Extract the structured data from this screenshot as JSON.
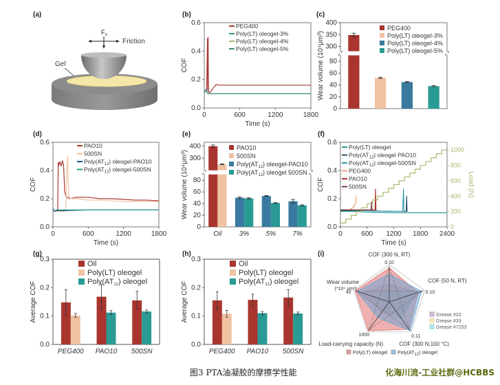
{
  "figure": {
    "caption": "图3 PTA油凝胶的摩擦学性能",
    "watermark": "化海川流-工业社群@HCBBS"
  },
  "colors": {
    "peg400": "#a8362f",
    "oil": "#a8362f",
    "pao10": "#a8362f",
    "light": "#f0c2a2",
    "blue": "#3a7aa0",
    "teal": "#2a9a94",
    "green": "#3aa08c",
    "olive": "#b0b080",
    "load": "#a8b870",
    "axis": "#444444",
    "darkblue": "#2b4f6e",
    "red_radar": "#e07070",
    "blue_radar": "#6fa6d4"
  },
  "chart_data": [
    {
      "id": "a",
      "type": "diagram",
      "panel_label": "(a)",
      "labels": {
        "force": "Fn",
        "friction": "Friction",
        "gel": "Gel"
      }
    },
    {
      "id": "b",
      "type": "line",
      "panel_label": "(b)",
      "xlabel": "Time (s)",
      "ylabel": "COF",
      "xlim": [
        0,
        1800
      ],
      "ylim": [
        0,
        0.6
      ],
      "xticks": [
        0,
        600,
        1200,
        1800
      ],
      "yticks": [
        0.0,
        0.2,
        0.4,
        0.6
      ],
      "legend": "top-right",
      "series": [
        {
          "name": "PEG400",
          "color": "#a8362f",
          "x": [
            0,
            20,
            40,
            55,
            60,
            65,
            70,
            80,
            100,
            150,
            200,
            250,
            300,
            400,
            600,
            800,
            1000,
            1200,
            1400,
            1600,
            1800
          ],
          "y": [
            0.12,
            0.12,
            0.13,
            0.49,
            0.12,
            0.5,
            0.12,
            0.11,
            0.11,
            0.14,
            0.165,
            0.16,
            0.16,
            0.16,
            0.16,
            0.16,
            0.16,
            0.16,
            0.16,
            0.16,
            0.16
          ]
        },
        {
          "name": "Poly(LT) oleogel-3%",
          "color": "#2a9a94",
          "x": [
            0,
            30,
            60,
            100,
            200,
            600,
            1200,
            1800
          ],
          "y": [
            0.11,
            0.12,
            0.105,
            0.1,
            0.1,
            0.1,
            0.1,
            0.1
          ]
        },
        {
          "name": "Poly(LT) oleogel-4%",
          "color": "#b0b080",
          "x": [
            0,
            30,
            60,
            100,
            200,
            600,
            1200,
            1800
          ],
          "y": [
            0.11,
            0.115,
            0.105,
            0.102,
            0.101,
            0.1,
            0.1,
            0.1
          ]
        },
        {
          "name": "Poly(LT) oleogel-5%",
          "color": "#3a8f8a",
          "x": [
            0,
            30,
            60,
            100,
            200,
            600,
            1200,
            1800
          ],
          "y": [
            0.11,
            0.13,
            0.1,
            0.1,
            0.1,
            0.1,
            0.1,
            0.1
          ]
        }
      ]
    },
    {
      "id": "c",
      "type": "bar",
      "panel_label": "(c)",
      "ylabel": "Wear volume (10⁴μm³)",
      "yticks_low": [
        0,
        20,
        40,
        60,
        80
      ],
      "yticks_high": [
        300,
        350,
        400
      ],
      "ylim_low": [
        0,
        90
      ],
      "ylim_high": [
        280,
        400
      ],
      "legend": "top-right",
      "categories": [
        "PEG400",
        "Poly(LT) oleogel-3%",
        "Poly(LT) oleogel-4%",
        "Poly(LT) oleogel-5%"
      ],
      "values": [
        348,
        52,
        45,
        38
      ],
      "errors": [
        8,
        1,
        0.8,
        0.8
      ],
      "colors": [
        "#a8362f",
        "#f0c2a2",
        "#3a7aa0",
        "#2a9a94"
      ]
    },
    {
      "id": "d",
      "type": "line",
      "panel_label": "(d)",
      "xlabel": "Time (s)",
      "ylabel": "COF",
      "xlim": [
        0,
        1800
      ],
      "ylim": [
        0,
        0.6
      ],
      "xticks": [
        0,
        600,
        1200,
        1800
      ],
      "yticks": [
        0.0,
        0.2,
        0.4,
        0.6
      ],
      "legend": "top-right",
      "series": [
        {
          "name": "PAO10",
          "color": "#a8362f",
          "x": [
            0,
            80,
            90,
            100,
            120,
            140,
            160,
            180,
            200,
            220,
            240,
            300,
            400,
            600,
            800,
            1000,
            1200,
            1400,
            1600,
            1800
          ],
          "y": [
            0.11,
            0.11,
            0.46,
            0.44,
            0.46,
            0.43,
            0.47,
            0.44,
            0.25,
            0.22,
            0.21,
            0.2,
            0.21,
            0.21,
            0.2,
            0.2,
            0.195,
            0.19,
            0.19,
            0.185
          ]
        },
        {
          "name": "500SN",
          "color": "#f0c2a2",
          "x": [
            0,
            200,
            220,
            240,
            250,
            260,
            270,
            300,
            400,
            600,
            800,
            1000,
            1200,
            1400,
            1600,
            1800
          ],
          "y": [
            0.11,
            0.11,
            0.14,
            0.45,
            0.5,
            0.3,
            0.22,
            0.2,
            0.2,
            0.19,
            0.19,
            0.185,
            0.18,
            0.18,
            0.18,
            0.18
          ]
        },
        {
          "name": "Poly(AT12) oleogel-PAO10",
          "color": "#2b4f6e",
          "x": [
            0,
            20,
            60,
            200,
            600,
            1200,
            1800
          ],
          "y": [
            0.13,
            0.11,
            0.115,
            0.115,
            0.12,
            0.12,
            0.12
          ]
        },
        {
          "name": "Poly(AT12) oleogel-500SN",
          "color": "#2a9a94",
          "x": [
            0,
            20,
            60,
            200,
            600,
            1200,
            1800
          ],
          "y": [
            0.12,
            0.115,
            0.12,
            0.12,
            0.12,
            0.12,
            0.12
          ]
        }
      ]
    },
    {
      "id": "e",
      "type": "bar",
      "panel_label": "(e)",
      "ylabel": "Wear volume (10⁴μm³)",
      "yticks_low": [
        0,
        20,
        40,
        60,
        80
      ],
      "yticks_high": [
        300,
        400
      ],
      "ylim_low": [
        0,
        90
      ],
      "ylim_high": [
        200,
        430
      ],
      "legend": "top-right",
      "categories": [
        "Oil",
        "3%",
        "5%",
        "7%"
      ],
      "series": [
        {
          "name": "PAO10",
          "color": "#a8362f",
          "values": [
            398,
            null,
            null,
            null
          ],
          "errors": [
            10,
            null,
            null,
            null
          ]
        },
        {
          "name": "500SN",
          "color": "#f0c2a2",
          "values": [
            250,
            null,
            null,
            null
          ],
          "errors": [
            3,
            null,
            null,
            null
          ]
        },
        {
          "name": "Poly(AT12) oleogel-PAO10",
          "color": "#3a7aa0",
          "values": [
            null,
            50,
            53,
            44
          ],
          "errors": [
            null,
            1.5,
            0.8,
            3
          ]
        },
        {
          "name": "Poly(AT12) oleogel 500SN",
          "color": "#2a9a94",
          "values": [
            null,
            49,
            41,
            37
          ],
          "errors": [
            null,
            1,
            0.5,
            0.8
          ]
        }
      ]
    },
    {
      "id": "f",
      "type": "line",
      "panel_label": "(f)",
      "xlabel": "Time (s)",
      "ylabel": "COF",
      "y2label": "Load (N)",
      "xlim": [
        0,
        2400
      ],
      "ylim": [
        0,
        0.6
      ],
      "y2lim": [
        0,
        1100
      ],
      "xticks": [
        0,
        600,
        1200,
        1800,
        2400
      ],
      "yticks": [
        0.0,
        0.2,
        0.4,
        0.6
      ],
      "y2ticks": [
        0,
        200,
        400,
        600,
        800,
        1000
      ],
      "legend": "top-left",
      "series": [
        {
          "name": "Poly(LT) oleogel",
          "color": "#2a9a94",
          "x": [
            0,
            200,
            600,
            1200,
            1800,
            2400
          ],
          "y": [
            0.11,
            0.11,
            0.105,
            0.1,
            0.1,
            0.1
          ]
        },
        {
          "name": "Poly(AT12) oleogel PAO10",
          "color": "#2b4f6e",
          "x": [
            0,
            600,
            1200,
            1480,
            1490,
            1500,
            1510
          ],
          "y": [
            0.115,
            0.115,
            0.11,
            0.11,
            0.22,
            0.11,
            0.11
          ]
        },
        {
          "name": "Poly(AT12) oleogel-500SN",
          "color": "#3a9ab0",
          "x": [
            0,
            600,
            1200,
            1400,
            1420,
            1430,
            1440
          ],
          "y": [
            0.12,
            0.115,
            0.11,
            0.11,
            0.27,
            0.12,
            0.11
          ]
        },
        {
          "name": "PEG400",
          "color": "#f0a080",
          "x": [
            0,
            200,
            300,
            340,
            360,
            370
          ],
          "y": [
            0.12,
            0.12,
            0.14,
            0.17,
            0.22,
            0.22
          ]
        },
        {
          "name": "PAO10",
          "color": "#a8362f",
          "x": [
            0,
            400,
            780,
            790,
            800,
            810
          ],
          "y": [
            0.12,
            0.12,
            0.12,
            0.27,
            0.12,
            0.12
          ]
        },
        {
          "name": "500SN",
          "color": "#7a3a3a",
          "x": [
            0,
            400,
            690,
            700,
            710
          ],
          "y": [
            0.12,
            0.12,
            0.12,
            0.18,
            0.12
          ]
        },
        {
          "name": "Load",
          "color": "#a8b870",
          "axis": "y2",
          "steps": [
            [
              0,
              50
            ],
            [
              120,
              100
            ],
            [
              240,
              150
            ],
            [
              360,
              200
            ],
            [
              480,
              250
            ],
            [
              600,
              300
            ],
            [
              720,
              350
            ],
            [
              840,
              400
            ],
            [
              960,
              450
            ],
            [
              1080,
              500
            ],
            [
              1200,
              550
            ],
            [
              1320,
              600
            ],
            [
              1440,
              650
            ],
            [
              1560,
              700
            ],
            [
              1680,
              750
            ],
            [
              1800,
              800
            ],
            [
              1920,
              850
            ],
            [
              2040,
              900
            ],
            [
              2160,
              950
            ],
            [
              2280,
              1000
            ],
            [
              2400,
              1000
            ]
          ]
        }
      ]
    },
    {
      "id": "g",
      "type": "bar",
      "panel_label": "(g)",
      "ylabel": "Average COF",
      "ylim": [
        0,
        0.3
      ],
      "yticks": [
        0.0,
        0.1,
        0.2,
        0.3
      ],
      "legend": "top-right",
      "categories": [
        "PEG400",
        "PAO10",
        "500SN"
      ],
      "series": [
        {
          "name": "Oil",
          "color": "#a8362f",
          "values": [
            0.148,
            0.168,
            0.155
          ],
          "errors": [
            0.045,
            0.043,
            0.032
          ]
        },
        {
          "name": "Poly(LT) oleogel",
          "color": "#f0c2a2",
          "values": [
            0.102,
            null,
            null
          ],
          "errors": [
            0.007,
            null,
            null
          ]
        },
        {
          "name": "Poly(AT12) oleogel",
          "color": "#2a9a94",
          "values": [
            null,
            0.112,
            0.116
          ],
          "errors": [
            null,
            0.007,
            0.005
          ]
        }
      ]
    },
    {
      "id": "h",
      "type": "bar",
      "panel_label": "(h)",
      "ylabel": "Average COF",
      "ylim": [
        0,
        0.3
      ],
      "yticks": [
        0.0,
        0.1,
        0.2,
        0.3
      ],
      "legend": "top-right",
      "categories": [
        "PEG400",
        "PAO10",
        "500SN"
      ],
      "series": [
        {
          "name": "Oil",
          "color": "#a8362f",
          "values": [
            0.155,
            0.157,
            0.165
          ],
          "errors": [
            0.03,
            0.02,
            0.028
          ]
        },
        {
          "name": "Poly(LT) oleogel",
          "color": "#f0c2a2",
          "values": [
            0.108,
            null,
            null
          ],
          "errors": [
            0.012,
            null,
            null
          ]
        },
        {
          "name": "Poly(AT12) oleogel",
          "color": "#2a9a94",
          "values": [
            null,
            0.11,
            0.109
          ],
          "errors": [
            null,
            0.006,
            0.005
          ]
        }
      ]
    },
    {
      "id": "i",
      "type": "radar",
      "panel_label": "(i)",
      "axes": [
        {
          "label": "COF (300 N, RT)",
          "tick": "0.10"
        },
        {
          "label": "COF (50 N, RT)",
          "tick": "0.10"
        },
        {
          "label": "COF (300 N,100 °C)",
          "tick": "0.11"
        },
        {
          "label": "Load-carrying capacity (N)",
          "tick": "1000"
        },
        {
          "label": "Wear volume (*10⁴ μm³)",
          "tick": "40"
        }
      ],
      "series": [
        {
          "name": "Poly(LT) oleogel",
          "color": "#e07070",
          "values": [
            0.95,
            0.85,
            0.95,
            1.0,
            1.0
          ]
        },
        {
          "name": "Poly(AT12) oleogel",
          "color": "#6fa6d4",
          "values": [
            0.78,
            0.95,
            1.0,
            0.55,
            0.95
          ]
        },
        {
          "name": "Grease #22",
          "color": "#b89ab8",
          "values": [
            0.5,
            0.85,
            0.55,
            0.35,
            0.8
          ]
        },
        {
          "name": "Grease #33",
          "color": "#e8d8a0",
          "values": [
            0.4,
            0.5,
            0.45,
            0.4,
            0.55
          ]
        },
        {
          "name": "Grease #7253",
          "color": "#90d8d8",
          "values": [
            0.3,
            0.8,
            0.6,
            0.3,
            0.5
          ]
        }
      ],
      "legend_bottom": [
        "Poly(LT) oleogel",
        "Poly(AT12) oleogel"
      ],
      "legend_right": [
        "Grease #22",
        "Grease #33",
        "Grease #7253"
      ]
    }
  ]
}
